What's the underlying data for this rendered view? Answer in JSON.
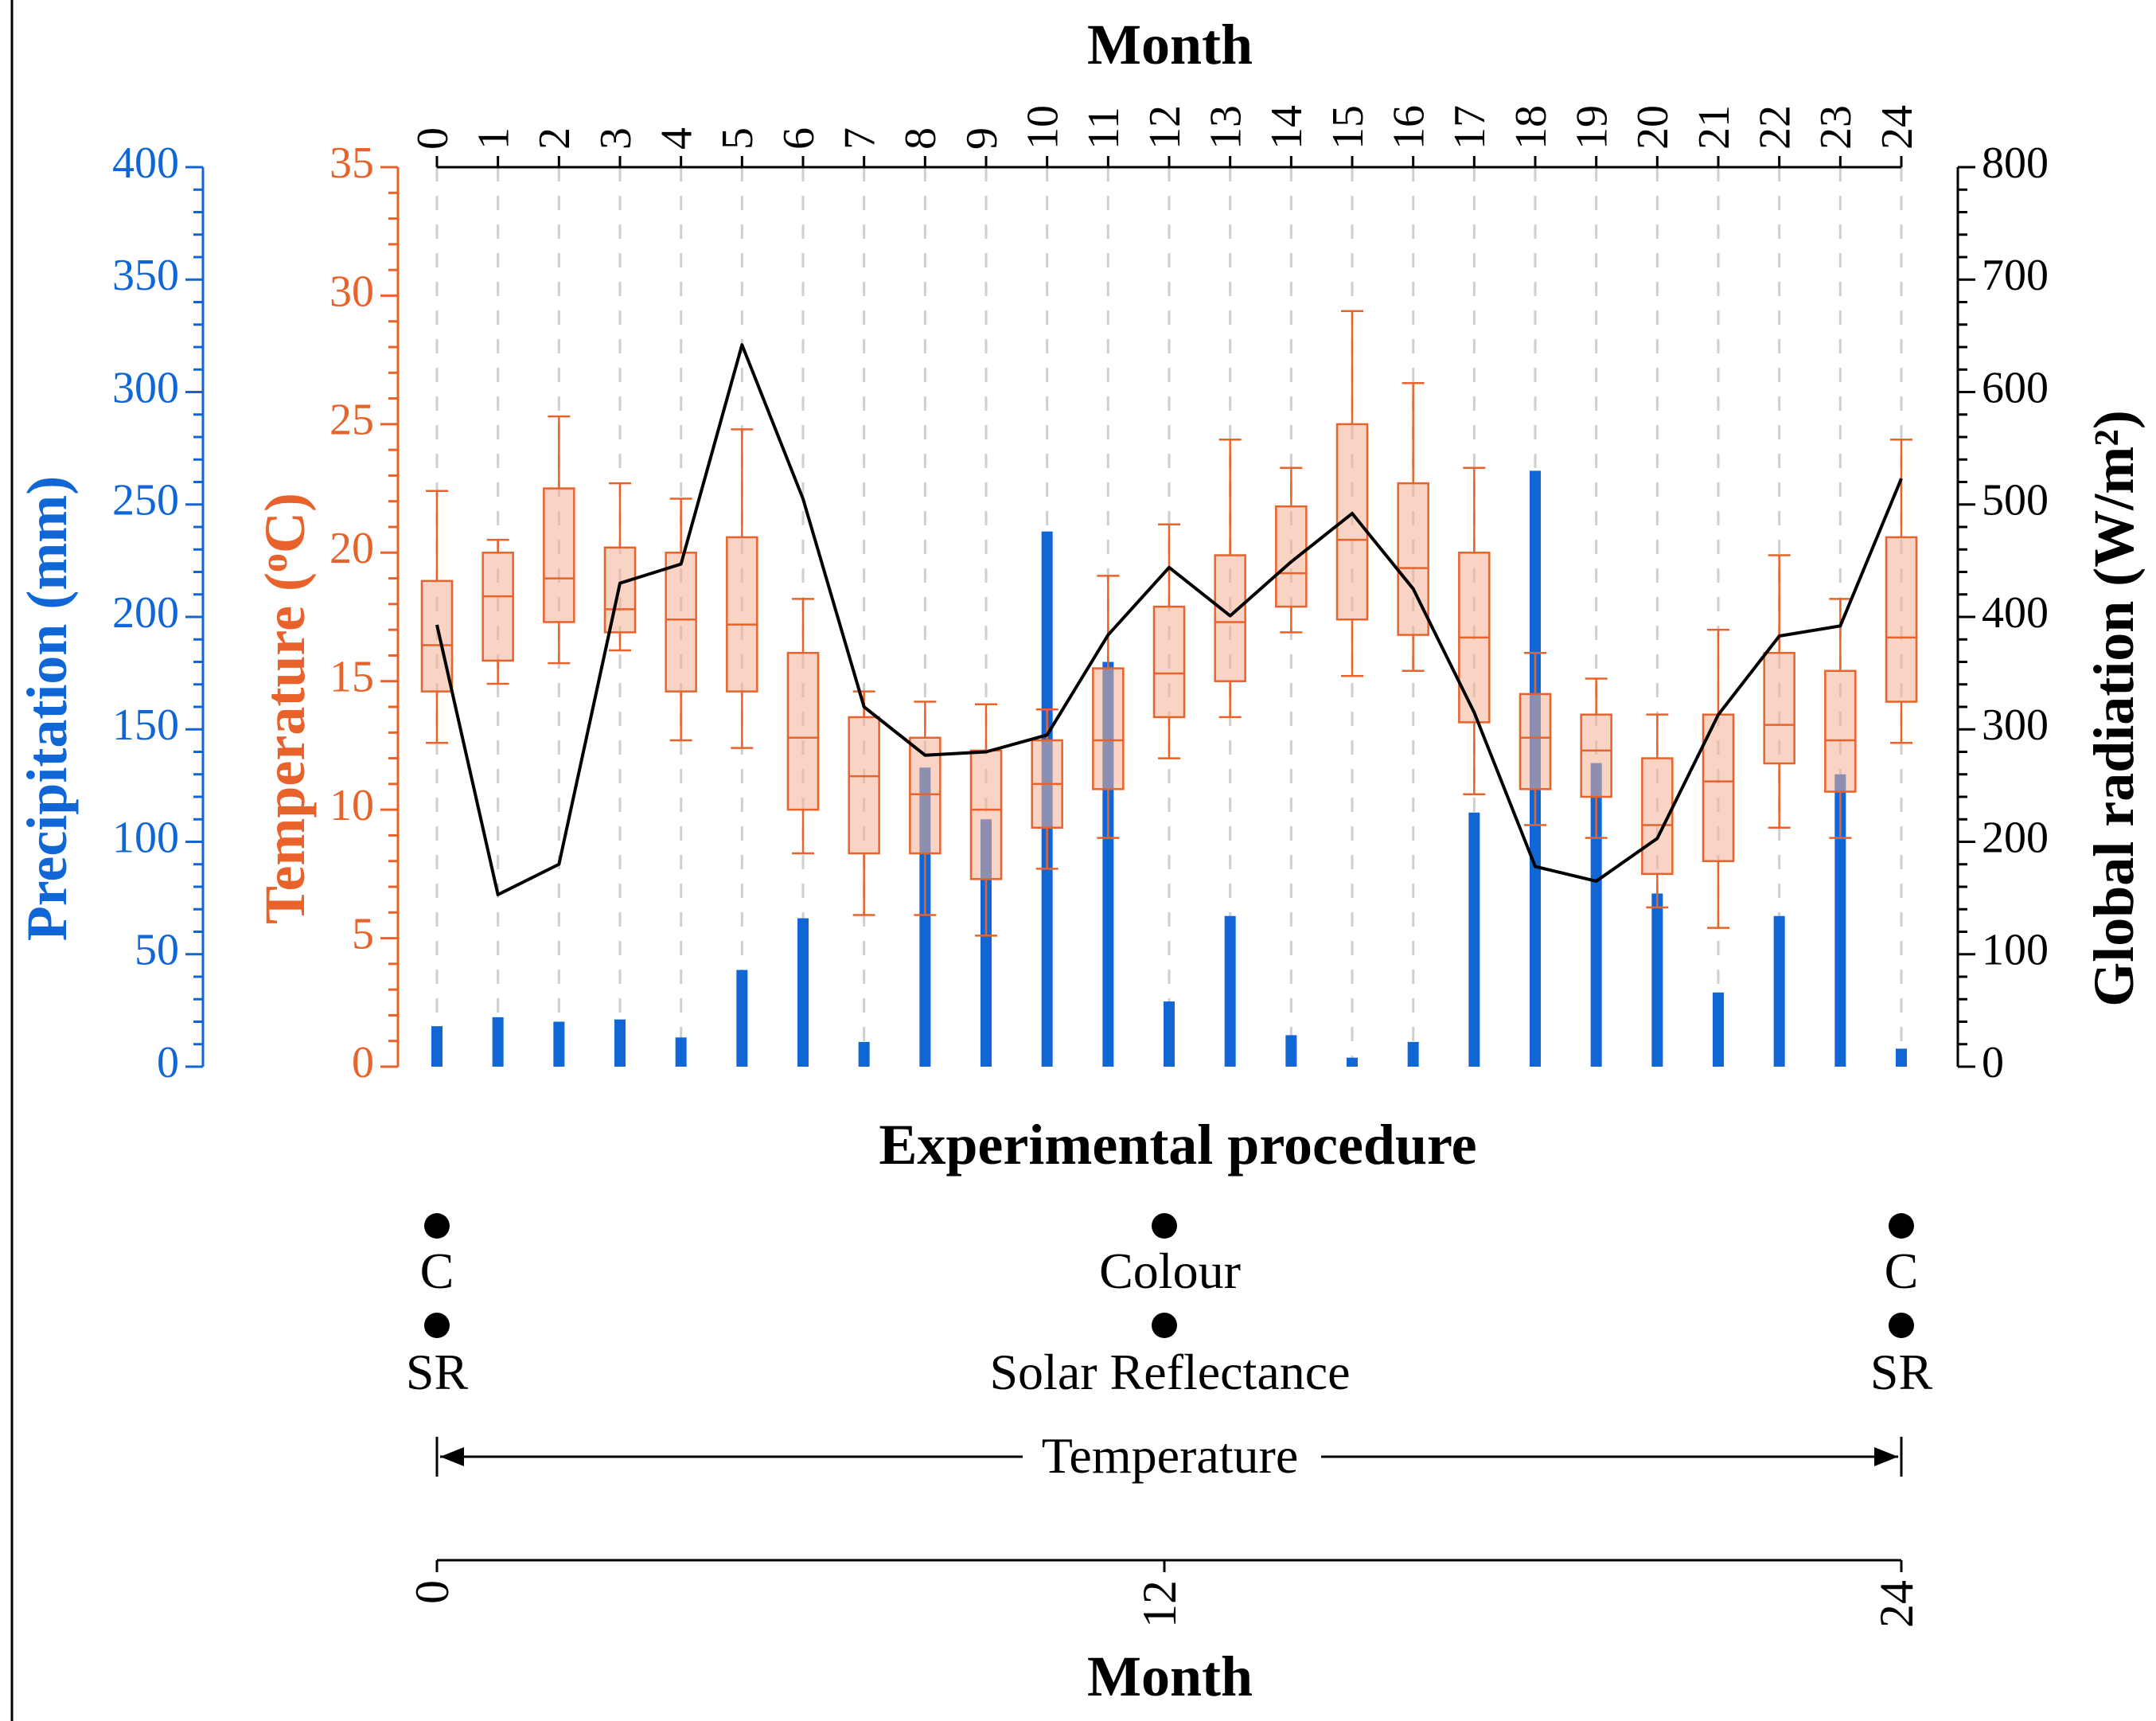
{
  "chart_data": {
    "type": "combo (bar + box + line)",
    "x_top_label": "Month",
    "x_ticks": [
      "0",
      "1",
      "2",
      "3",
      "4",
      "5",
      "6",
      "7",
      "8",
      "9",
      "10",
      "11",
      "12",
      "13",
      "14",
      "15",
      "16",
      "17",
      "18",
      "19",
      "20",
      "21",
      "22",
      "23",
      "24"
    ],
    "axes": {
      "precipitation": {
        "label": "Precipitation (mm)",
        "range": [
          0,
          400
        ],
        "ticks": [
          "0",
          "50",
          "100",
          "150",
          "200",
          "250",
          "300",
          "350",
          "400"
        ],
        "color": "#1166D6"
      },
      "temperature": {
        "label_main": "Temperature (",
        "label_sup": "o",
        "label_end": "C)",
        "range": [
          0,
          35
        ],
        "ticks": [
          "0",
          "5",
          "10",
          "15",
          "20",
          "25",
          "30",
          "35"
        ],
        "color": "#E8632B"
      },
      "radiation": {
        "label": "Global radiation (W/m²)",
        "range": [
          0,
          800
        ],
        "ticks": [
          "0",
          "100",
          "200",
          "300",
          "400",
          "500",
          "600",
          "700",
          "800"
        ],
        "color": "#000000"
      }
    },
    "precipitation_mm": [
      18,
      22,
      20,
      21,
      13,
      43,
      66,
      11,
      133,
      110,
      238,
      180,
      29,
      67,
      14,
      4,
      11,
      113,
      265,
      135,
      77,
      33,
      67,
      130,
      8
    ],
    "temperature_box": [
      {
        "min": 12.6,
        "q1": 14.6,
        "median": 16.4,
        "q3": 18.9,
        "max": 22.4
      },
      {
        "min": 14.9,
        "q1": 15.8,
        "median": 18.3,
        "q3": 20.0,
        "max": 20.5
      },
      {
        "min": 15.7,
        "q1": 17.3,
        "median": 19.0,
        "q3": 22.5,
        "max": 25.3
      },
      {
        "min": 16.2,
        "q1": 16.9,
        "median": 17.8,
        "q3": 20.2,
        "max": 22.7
      },
      {
        "min": 12.7,
        "q1": 14.6,
        "median": 17.4,
        "q3": 20.0,
        "max": 22.1
      },
      {
        "min": 12.4,
        "q1": 14.6,
        "median": 17.2,
        "q3": 20.6,
        "max": 24.8
      },
      {
        "min": 8.3,
        "q1": 10.0,
        "median": 12.8,
        "q3": 16.1,
        "max": 18.2
      },
      {
        "min": 5.9,
        "q1": 8.3,
        "median": 11.3,
        "q3": 13.6,
        "max": 14.6
      },
      {
        "min": 5.9,
        "q1": 8.3,
        "median": 10.6,
        "q3": 12.8,
        "max": 14.2
      },
      {
        "min": 5.1,
        "q1": 7.3,
        "median": 10.0,
        "q3": 12.3,
        "max": 14.1
      },
      {
        "min": 7.7,
        "q1": 9.3,
        "median": 11.0,
        "q3": 12.7,
        "max": 13.9
      },
      {
        "min": 8.9,
        "q1": 10.8,
        "median": 12.7,
        "q3": 15.5,
        "max": 19.1
      },
      {
        "min": 12.0,
        "q1": 13.6,
        "median": 15.3,
        "q3": 17.9,
        "max": 21.1
      },
      {
        "min": 13.6,
        "q1": 15.0,
        "median": 17.3,
        "q3": 19.9,
        "max": 24.4
      },
      {
        "min": 16.9,
        "q1": 17.9,
        "median": 19.2,
        "q3": 21.8,
        "max": 23.3
      },
      {
        "min": 15.2,
        "q1": 17.4,
        "median": 20.5,
        "q3": 25.0,
        "max": 29.4
      },
      {
        "min": 15.4,
        "q1": 16.8,
        "median": 19.4,
        "q3": 22.7,
        "max": 26.6
      },
      {
        "min": 10.6,
        "q1": 13.4,
        "median": 16.7,
        "q3": 20.0,
        "max": 23.3
      },
      {
        "min": 9.4,
        "q1": 10.8,
        "median": 12.8,
        "q3": 14.5,
        "max": 16.1
      },
      {
        "min": 8.9,
        "q1": 10.5,
        "median": 12.3,
        "q3": 13.7,
        "max": 15.1
      },
      {
        "min": 6.2,
        "q1": 7.5,
        "median": 9.4,
        "q3": 12.0,
        "max": 13.7
      },
      {
        "min": 5.4,
        "q1": 8.0,
        "median": 11.1,
        "q3": 13.7,
        "max": 17.0
      },
      {
        "min": 9.3,
        "q1": 11.8,
        "median": 13.3,
        "q3": 16.1,
        "max": 19.9
      },
      {
        "min": 8.9,
        "q1": 10.7,
        "median": 12.7,
        "q3": 15.4,
        "max": 18.2
      },
      {
        "min": 12.6,
        "q1": 14.2,
        "median": 16.7,
        "q3": 20.6,
        "max": 24.4
      }
    ],
    "radiation_wm2": [
      393,
      153,
      180,
      430,
      447,
      642,
      505,
      320,
      277,
      280,
      295,
      384,
      444,
      401,
      449,
      492,
      425,
      315,
      178,
      165,
      203,
      313,
      383,
      392,
      523
    ],
    "procedure": {
      "title": "Experimental procedure",
      "colour_label": "Colour",
      "colour_short": "C",
      "sr_label": "Solar Reflectance",
      "sr_short": "SR",
      "temperature_label": "Temperature",
      "timeline_ticks": [
        "0",
        "12",
        "24"
      ],
      "timeline_label": "Month"
    }
  }
}
